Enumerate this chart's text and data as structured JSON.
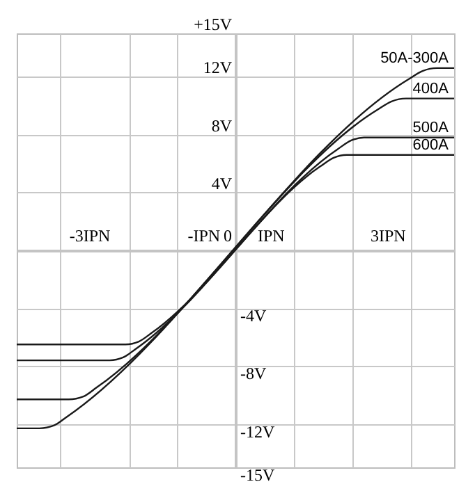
{
  "chart_data": {
    "type": "line",
    "xlim": [
      -3.74,
      3.74
    ],
    "xticks": [
      {
        "value": -3,
        "label": null
      },
      {
        "value": -1.81,
        "label": null
      },
      {
        "value": -1,
        "label": null
      },
      {
        "value": 1,
        "label": null
      },
      {
        "value": 2,
        "label": null
      },
      {
        "value": 3,
        "label": null
      },
      {
        "value": -2.5,
        "label": "-3IPN"
      },
      {
        "value": -0.55,
        "label": "-IPN"
      },
      {
        "value": 0,
        "label": "0"
      },
      {
        "value": 0.6,
        "label": "IPN"
      },
      {
        "value": 2.6,
        "label": "3IPN"
      }
    ],
    "ylim": [
      -15,
      15
    ],
    "yticks": [
      {
        "value": 15,
        "label": "+15V"
      },
      {
        "value": 12,
        "label": "12V"
      },
      {
        "value": 8,
        "label": "8V"
      },
      {
        "value": 4,
        "label": "4V"
      },
      {
        "value": 0,
        "label": null
      }
    ],
    "y2lim": [
      -15,
      15
    ],
    "y2ticks": [
      {
        "value": -4,
        "label": "-4V"
      },
      {
        "value": -8,
        "label": "-8V"
      },
      {
        "value": -12,
        "label": "-12V"
      },
      {
        "value": -15,
        "label": "-15V"
      }
    ],
    "grid": true,
    "series": [
      {
        "name": "50A-300A",
        "color": "#1a1a1a",
        "x": [
          -3.74,
          -3.35,
          -3.1,
          -2.88,
          2.95,
          3.2,
          3.45,
          3.74
        ],
        "values": [
          -12.3,
          -12.3,
          -12.1,
          -11.5,
          11.8,
          12.4,
          12.6,
          12.6
        ]
      },
      {
        "name": "400A",
        "color": "#1a1a1a",
        "x": [
          -3.74,
          -2.85,
          -2.6,
          -2.38,
          2.42,
          2.67,
          2.92,
          3.74
        ],
        "values": [
          -10.3,
          -10.3,
          -10.1,
          -9.5,
          9.7,
          10.3,
          10.5,
          10.5
        ]
      },
      {
        "name": "500A",
        "color": "#1a1a1a",
        "x": [
          -3.74,
          -2.15,
          -1.92,
          -1.7,
          1.75,
          1.98,
          2.2,
          3.74
        ],
        "values": [
          -7.6,
          -7.6,
          -7.4,
          -6.8,
          7.0,
          7.6,
          7.8,
          7.8
        ]
      },
      {
        "name": "600A",
        "color": "#1a1a1a",
        "x": [
          -3.74,
          -1.88,
          -1.65,
          -1.43,
          1.45,
          1.68,
          1.9,
          3.74
        ],
        "values": [
          -6.5,
          -6.5,
          -6.3,
          -5.7,
          5.8,
          6.4,
          6.6,
          6.6
        ]
      }
    ],
    "legend": false
  }
}
